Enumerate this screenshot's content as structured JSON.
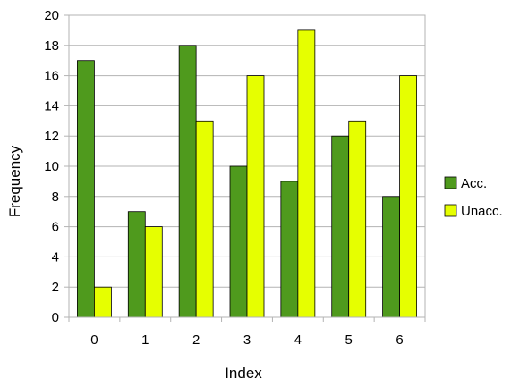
{
  "chart_data": {
    "type": "bar",
    "xlabel": "Index",
    "ylabel": "Frequency",
    "categories": [
      "0",
      "1",
      "2",
      "3",
      "4",
      "5",
      "6"
    ],
    "series": [
      {
        "name": "Acc.",
        "color": "#4f9a1d",
        "values": [
          17,
          7,
          18,
          10,
          9,
          12,
          8
        ]
      },
      {
        "name": "Unacc.",
        "color": "#e6ff00",
        "values": [
          2,
          6,
          13,
          16,
          19,
          13,
          16
        ]
      }
    ],
    "ylim": [
      0,
      20
    ],
    "yticks": [
      "0",
      "2",
      "4",
      "6",
      "8",
      "10",
      "12",
      "14",
      "16",
      "18",
      "20"
    ],
    "grid": true,
    "legend_position": "right"
  }
}
